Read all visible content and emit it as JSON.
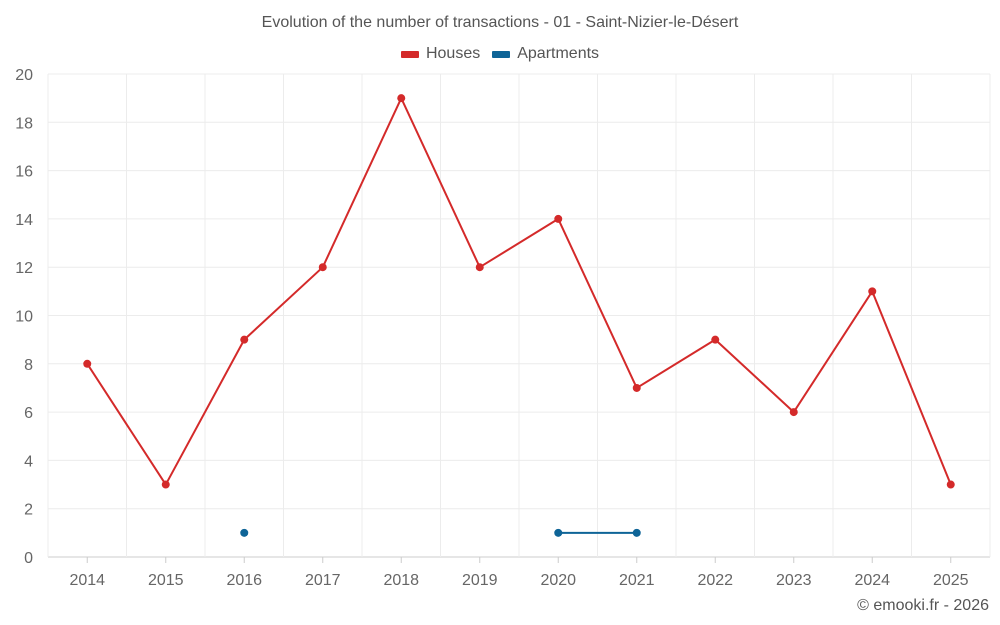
{
  "chart_data": {
    "type": "line",
    "title": "Evolution of the number of transactions - 01 - Saint-Nizier-le-Désert",
    "xlabel": "",
    "ylabel": "",
    "categories": [
      "2014",
      "2015",
      "2016",
      "2017",
      "2018",
      "2019",
      "2020",
      "2021",
      "2022",
      "2023",
      "2024",
      "2025"
    ],
    "ylim": [
      0,
      20
    ],
    "yticks": [
      0,
      2,
      4,
      6,
      8,
      10,
      12,
      14,
      16,
      18,
      20
    ],
    "grid": true,
    "legend_position": "top-center",
    "series": [
      {
        "name": "Houses",
        "color": "#d42a2a",
        "values": [
          8,
          3,
          9,
          12,
          19,
          12,
          14,
          7,
          9,
          6,
          11,
          3
        ]
      },
      {
        "name": "Apartments",
        "color": "#0e6497",
        "values": [
          null,
          null,
          1,
          null,
          null,
          null,
          1,
          1,
          null,
          null,
          null,
          null
        ]
      }
    ]
  },
  "credit": "© emooki.fr - 2026"
}
